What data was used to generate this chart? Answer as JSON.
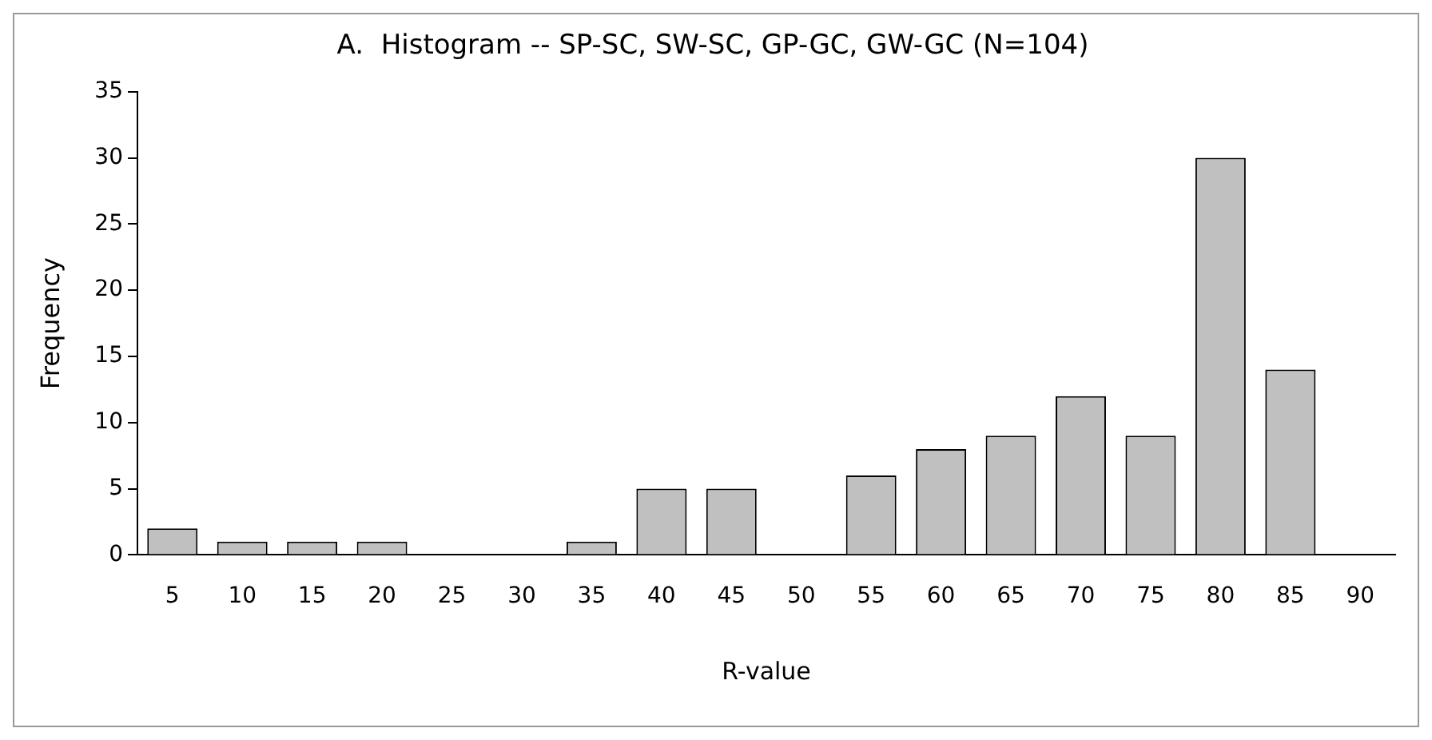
{
  "chart_data": {
    "type": "bar",
    "title": "A.  Histogram -- SP-SC, SW-SC, GP-GC, GW-GC (N=104)",
    "xlabel": "R-value",
    "ylabel": "Frequency",
    "categories": [
      "5",
      "10",
      "15",
      "20",
      "25",
      "30",
      "35",
      "40",
      "45",
      "50",
      "55",
      "60",
      "65",
      "70",
      "75",
      "80",
      "85",
      "90"
    ],
    "values": [
      2,
      1,
      1,
      1,
      0,
      0,
      1,
      5,
      5,
      0,
      6,
      8,
      9,
      12,
      9,
      30,
      14,
      0
    ],
    "color": "#c0c0c0",
    "ylim": [
      0,
      35
    ],
    "yticks": [
      0,
      5,
      10,
      15,
      20,
      25,
      30,
      35
    ],
    "grid": false,
    "legend": false
  }
}
